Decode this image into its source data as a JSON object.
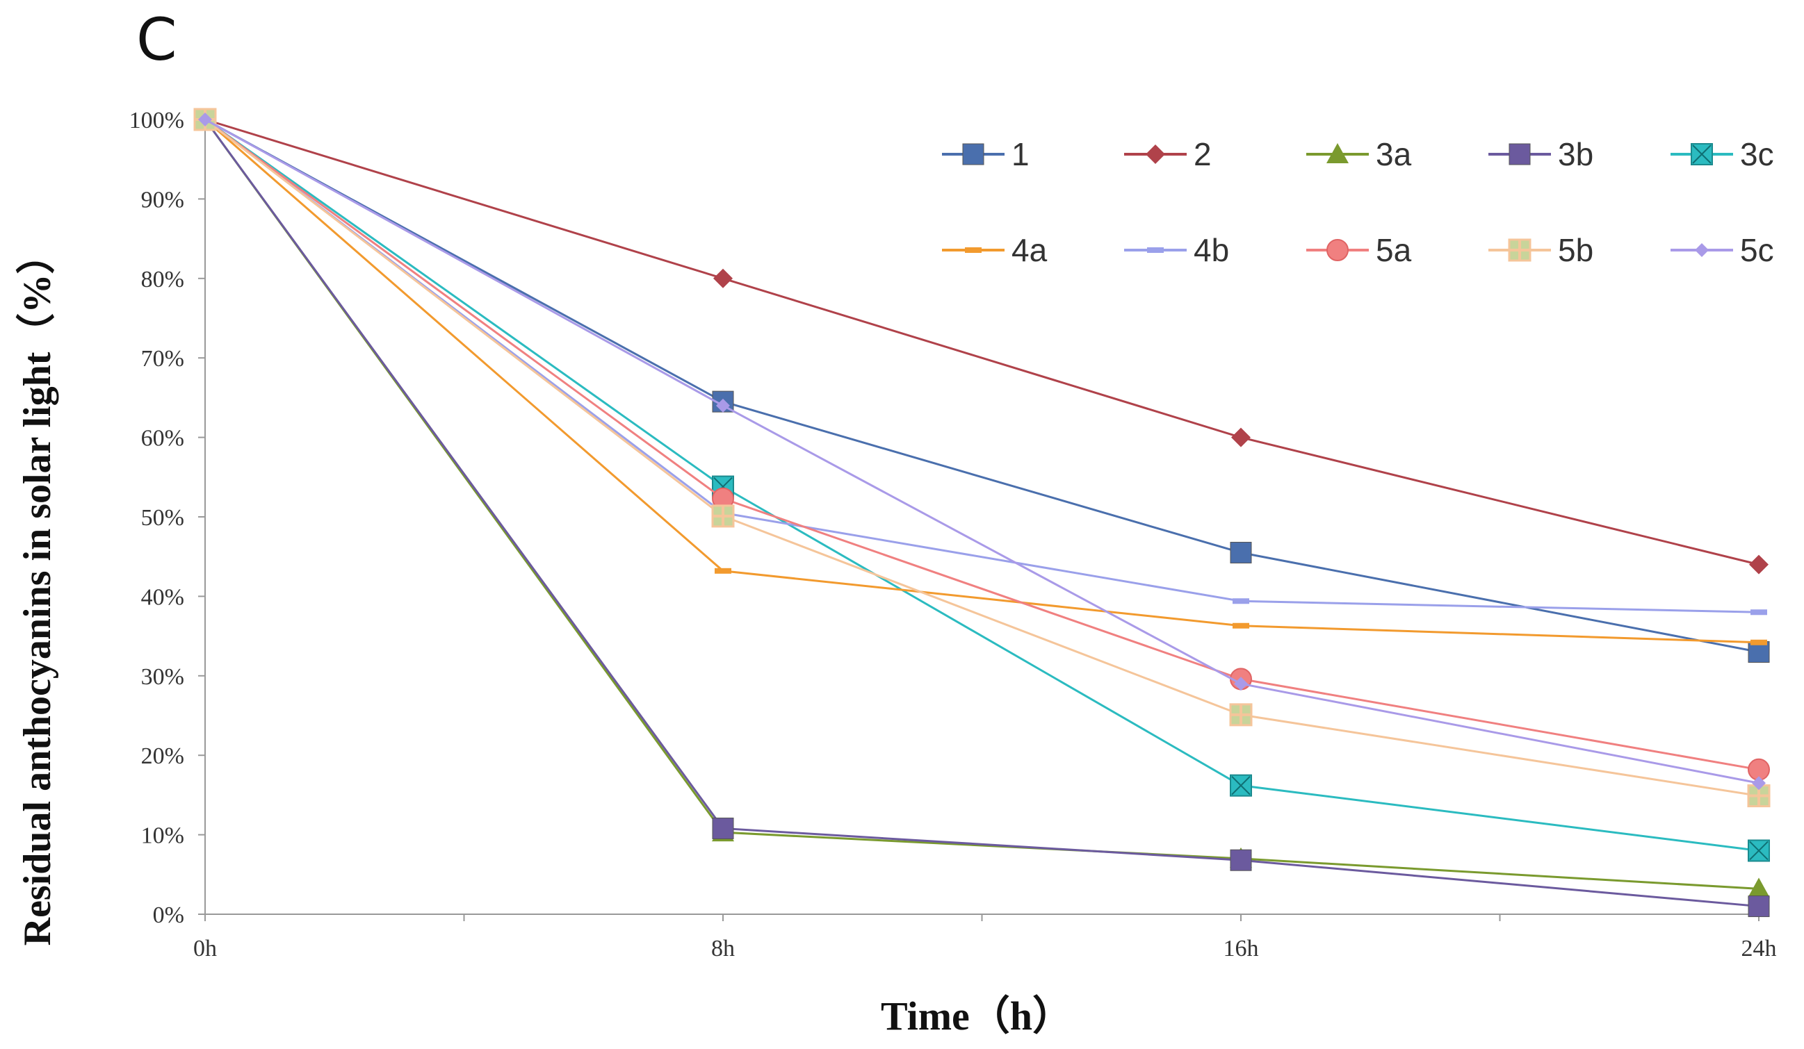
{
  "panel_label": "C",
  "chart_data": {
    "type": "line",
    "title": "",
    "xlabel": "Time（h）",
    "ylabel": "Residual anthocyanins in solar light（%）",
    "categories": [
      "0h",
      "8h",
      "16h",
      "24h"
    ],
    "x": [
      0,
      8,
      16,
      24
    ],
    "ylim": [
      0,
      100
    ],
    "y_ticks": [
      0,
      10,
      20,
      30,
      40,
      50,
      60,
      70,
      80,
      90,
      100
    ],
    "y_tick_labels": [
      "0%",
      "10%",
      "20%",
      "30%",
      "40%",
      "50%",
      "60%",
      "70%",
      "80%",
      "90%",
      "100%"
    ],
    "grid": false,
    "legend_position": "top-right",
    "series": [
      {
        "name": "1",
        "values": [
          100,
          64.5,
          45.5,
          33
        ],
        "color": "#4a6fad",
        "marker": "square"
      },
      {
        "name": "2",
        "values": [
          100,
          80,
          60,
          44
        ],
        "color": "#b0424a",
        "marker": "diamond"
      },
      {
        "name": "3a",
        "values": [
          100,
          10.3,
          7,
          3.2
        ],
        "color": "#7a9a2e",
        "marker": "triangle"
      },
      {
        "name": "3b",
        "values": [
          100,
          10.8,
          6.8,
          1
        ],
        "color": "#6b5a9e",
        "marker": "square"
      },
      {
        "name": "3c",
        "values": [
          100,
          53.8,
          16.2,
          8
        ],
        "color": "#2bbbc0",
        "marker": "square-x"
      },
      {
        "name": "4a",
        "values": [
          100,
          43.2,
          36.3,
          34.2
        ],
        "color": "#f29a2e",
        "marker": "dash"
      },
      {
        "name": "4b",
        "values": [
          100,
          50.5,
          39.4,
          38
        ],
        "color": "#9aa0ea",
        "marker": "dash"
      },
      {
        "name": "5a",
        "values": [
          100,
          52.3,
          29.6,
          18.2
        ],
        "color": "#f08080",
        "marker": "circle"
      },
      {
        "name": "5b",
        "values": [
          100,
          50.1,
          25.1,
          14.9
        ],
        "color": "#f5c59a",
        "marker": "square-plus"
      },
      {
        "name": "5c",
        "values": [
          100,
          64,
          29,
          16.5
        ],
        "color": "#a99ae8",
        "marker": "small-diamond"
      }
    ]
  }
}
